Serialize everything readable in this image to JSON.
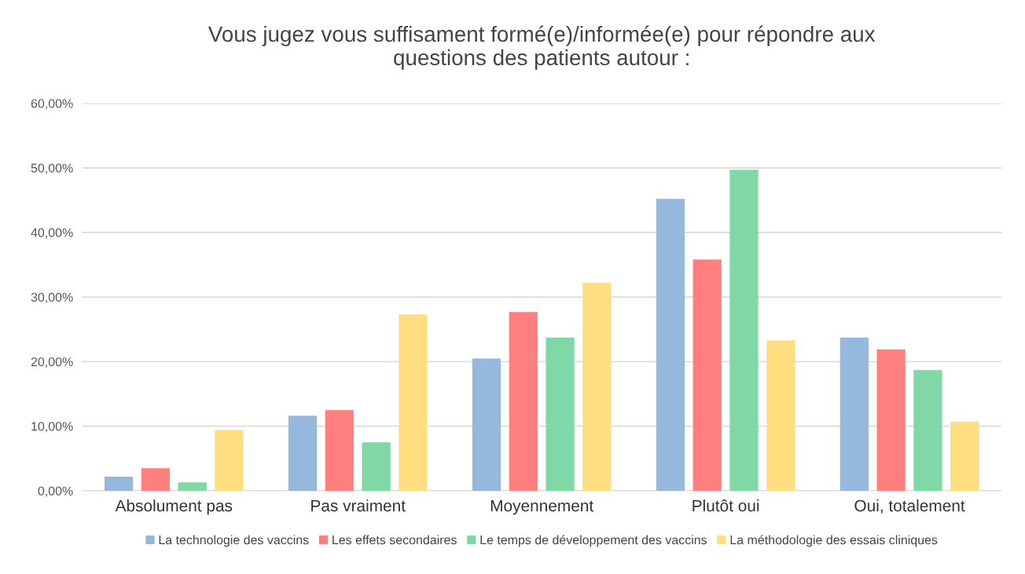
{
  "chart_data": {
    "type": "bar",
    "title": "Vous jugez vous suffisament formé(e)/informée(e) pour répondre aux\nquestions des patients autour :",
    "categories": [
      "Absolument pas",
      "Pas vraiment",
      "Moyennement",
      "Plutôt oui",
      "Oui, totalement"
    ],
    "series": [
      {
        "name": "La technologie des vaccins",
        "color": "#95b8dc",
        "values": [
          2.2,
          11.6,
          20.5,
          45.2,
          23.7
        ]
      },
      {
        "name": "Les effets secondaires",
        "color": "#ff7f7f",
        "values": [
          3.5,
          12.5,
          27.7,
          35.8,
          21.9
        ]
      },
      {
        "name": "Le temps de développement des vaccins",
        "color": "#80d8a6",
        "values": [
          1.3,
          7.5,
          23.7,
          49.7,
          18.7
        ]
      },
      {
        "name": "La méthodologie des essais cliniques",
        "color": "#ffde80",
        "values": [
          9.4,
          27.3,
          32.2,
          23.3,
          10.7
        ]
      }
    ],
    "ylim": [
      0,
      60
    ],
    "yticks": [
      {
        "value": 0,
        "label": "0,00%"
      },
      {
        "value": 10,
        "label": "10,00%"
      },
      {
        "value": 20,
        "label": "20,00%"
      },
      {
        "value": 30,
        "label": "30,00%"
      },
      {
        "value": 40,
        "label": "40,00%"
      },
      {
        "value": 50,
        "label": "50,00%"
      },
      {
        "value": 60,
        "label": "60,00%"
      }
    ],
    "grid": "y",
    "legend": "bottom"
  }
}
